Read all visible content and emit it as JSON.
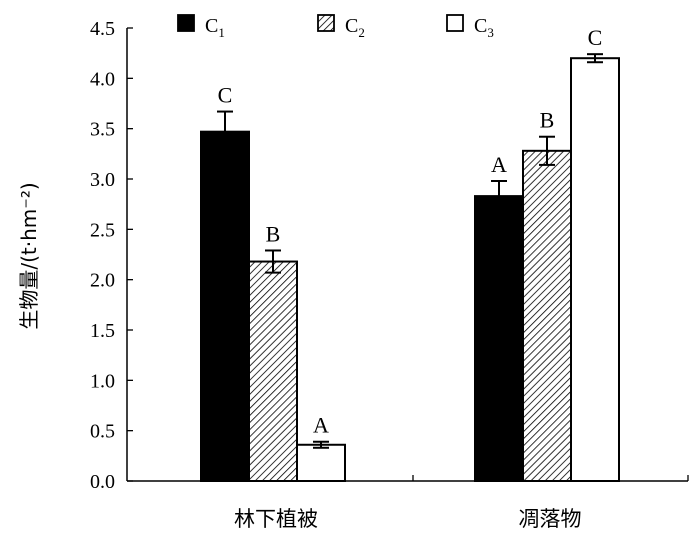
{
  "chart_data": {
    "type": "bar",
    "title": "",
    "xlabel": "",
    "ylabel": "生物量/(t·hm⁻²)",
    "ylim": [
      0,
      4.5
    ],
    "ytick_step": 0.5,
    "ytick_labels": [
      "0.0",
      "0.5",
      "1.0",
      "1.5",
      "2.0",
      "2.5",
      "3.0",
      "3.5",
      "4.0",
      "4.5"
    ],
    "categories": [
      "林下植被",
      "凋落物"
    ],
    "series": [
      {
        "name": "C1",
        "sub": "1",
        "pattern": "solid",
        "values": [
          3.47,
          2.83
        ],
        "errors": [
          0.2,
          0.15
        ],
        "sig": [
          "C",
          "A"
        ]
      },
      {
        "name": "C2",
        "sub": "2",
        "pattern": "hatch",
        "values": [
          2.18,
          3.28
        ],
        "errors": [
          0.11,
          0.14
        ],
        "sig": [
          "B",
          "B"
        ]
      },
      {
        "name": "C3",
        "sub": "3",
        "pattern": "empty",
        "values": [
          0.36,
          4.2
        ],
        "errors": [
          0.03,
          0.04
        ],
        "sig": [
          "A",
          "C"
        ]
      }
    ],
    "legend_position": "top"
  },
  "colors": {
    "fill_solid": "#000000",
    "stroke": "#000000",
    "background": "#ffffff"
  }
}
